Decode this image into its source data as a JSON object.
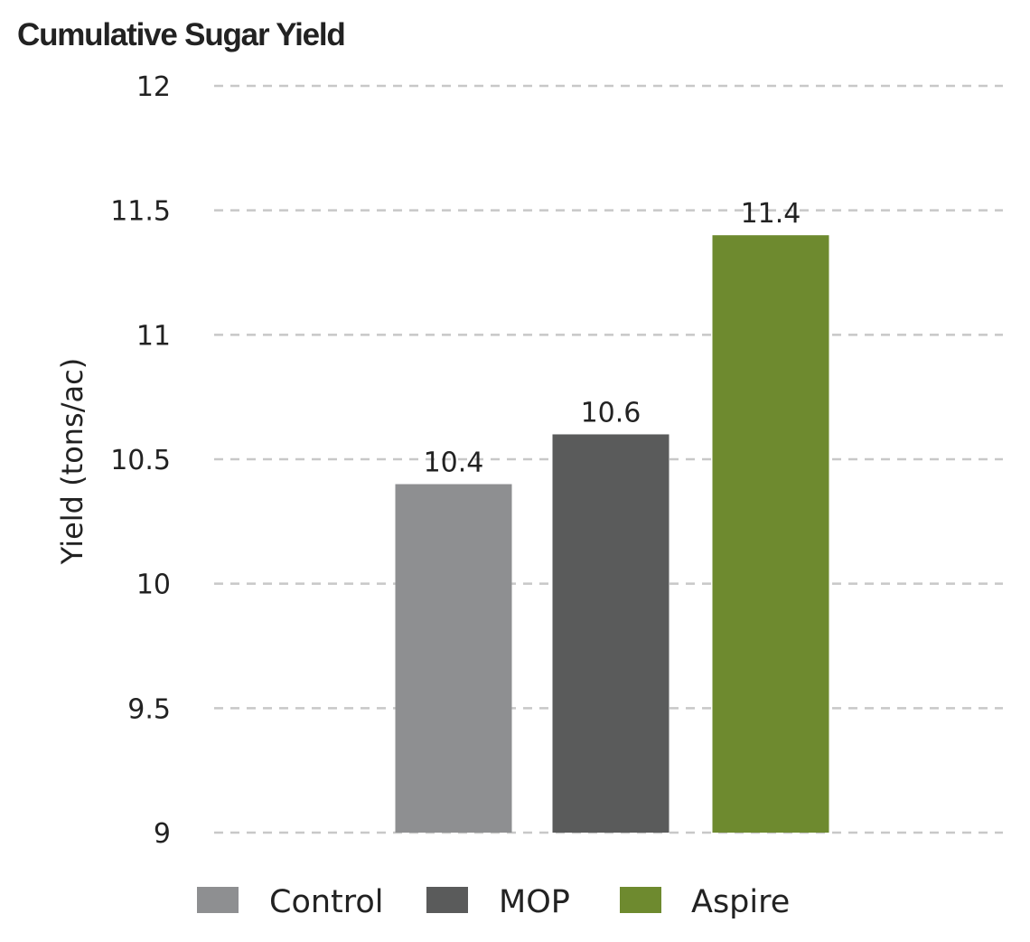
{
  "chart_data": {
    "type": "bar",
    "title": "Cumulative Sugar Yield",
    "xlabel": "",
    "ylabel": "Yield (tons/ac)",
    "ylim": [
      9,
      12
    ],
    "yticks": [
      12,
      11.5,
      11,
      10.5,
      10,
      9.5,
      9
    ],
    "ytick_labels": [
      "12",
      "11.5",
      "11",
      "10.5",
      "10",
      "9.5",
      "9"
    ],
    "grid": true,
    "categories": [
      "Control",
      "MOP",
      "Aspire"
    ],
    "values": [
      10.4,
      10.6,
      11.4
    ],
    "data_labels": [
      "10.4",
      "10.6",
      "11.4"
    ],
    "colors": [
      "#8e8f91",
      "#5a5b5b",
      "#6e8a2f"
    ],
    "legend": {
      "placement": "bottom",
      "entries": [
        "Control",
        "MOP",
        "Aspire"
      ]
    }
  }
}
